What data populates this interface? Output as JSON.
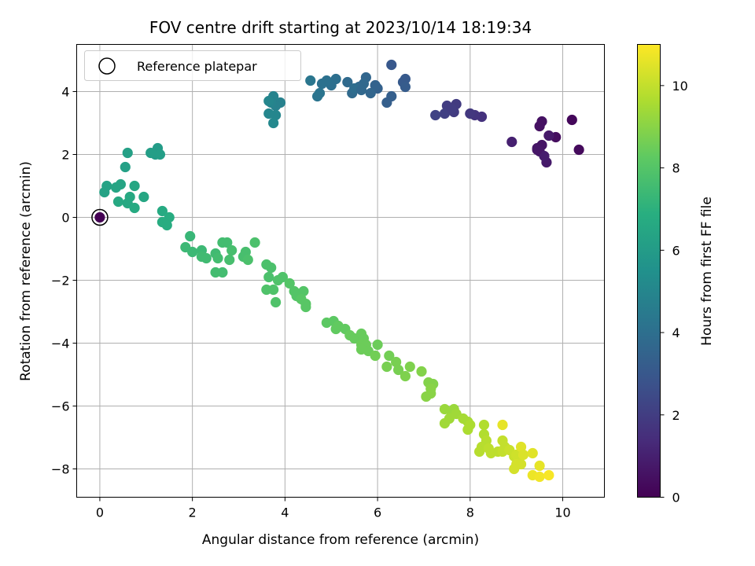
{
  "chart_data": {
    "type": "scatter",
    "title": "FOV centre drift starting at 2023/10/14 18:19:34",
    "xlabel": "Angular distance from reference (arcmin)",
    "ylabel": "Rotation from reference (arcmin)",
    "xlim": [
      -0.5,
      10.9
    ],
    "ylim": [
      -8.9,
      5.5
    ],
    "xticks": [
      0,
      2,
      4,
      6,
      8,
      10
    ],
    "yticks": [
      -8,
      -6,
      -4,
      -2,
      0,
      2,
      4
    ],
    "grid": true,
    "legend": {
      "position": "top-left",
      "entries": [
        "Reference platepar"
      ]
    },
    "reference_point": {
      "x": 0,
      "y": 0
    },
    "colorbar": {
      "label": "Hours from first FF file",
      "colormap": "viridis",
      "range": [
        0,
        11
      ],
      "ticks": [
        0,
        2,
        4,
        6,
        8,
        10
      ]
    },
    "columns": [
      "x",
      "y",
      "hours"
    ],
    "points": [
      [
        10.2,
        3.1,
        0.2
      ],
      [
        10.35,
        2.15,
        0.3
      ],
      [
        9.85,
        2.55,
        0.4
      ],
      [
        9.55,
        3.05,
        0.5
      ],
      [
        9.5,
        2.9,
        0.5
      ],
      [
        9.45,
        2.2,
        0.6
      ],
      [
        9.55,
        2.3,
        0.6
      ],
      [
        9.5,
        2.1,
        0.7
      ],
      [
        9.7,
        2.6,
        0.8
      ],
      [
        9.65,
        1.75,
        0.8
      ],
      [
        9.6,
        1.95,
        0.9
      ],
      [
        8.9,
        2.4,
        1.0
      ],
      [
        9.45,
        2.15,
        0.7
      ],
      [
        8.25,
        3.2,
        1.6
      ],
      [
        8.1,
        3.25,
        1.7
      ],
      [
        8.0,
        3.3,
        1.8
      ],
      [
        7.7,
        3.6,
        1.9
      ],
      [
        7.65,
        3.35,
        1.9
      ],
      [
        7.5,
        3.55,
        2.0
      ],
      [
        7.45,
        3.3,
        2.1
      ],
      [
        7.25,
        3.25,
        2.2
      ],
      [
        7.6,
        3.45,
        2.0
      ],
      [
        6.3,
        4.85,
        3.0
      ],
      [
        6.6,
        4.4,
        3.1
      ],
      [
        6.55,
        4.3,
        3.1
      ],
      [
        6.6,
        4.15,
        3.2
      ],
      [
        6.3,
        3.85,
        3.3
      ],
      [
        6.2,
        3.65,
        3.3
      ],
      [
        6.0,
        4.1,
        3.4
      ],
      [
        5.95,
        4.2,
        3.5
      ],
      [
        5.85,
        3.95,
        3.6
      ],
      [
        5.75,
        4.45,
        3.6
      ],
      [
        5.7,
        4.25,
        3.7
      ],
      [
        5.6,
        4.15,
        3.7
      ],
      [
        5.45,
        3.95,
        3.8
      ],
      [
        5.35,
        4.3,
        3.8
      ],
      [
        5.5,
        4.1,
        3.9
      ],
      [
        5.1,
        4.4,
        4.0
      ],
      [
        5.0,
        4.2,
        4.0
      ],
      [
        4.9,
        4.35,
        4.1
      ],
      [
        4.8,
        4.25,
        4.1
      ],
      [
        4.75,
        3.95,
        4.2
      ],
      [
        4.7,
        3.85,
        4.2
      ],
      [
        4.55,
        4.35,
        4.3
      ],
      [
        5.65,
        4.05,
        3.7
      ],
      [
        3.9,
        3.65,
        4.8
      ],
      [
        3.8,
        3.55,
        4.8
      ],
      [
        3.75,
        3.85,
        4.9
      ],
      [
        3.7,
        3.65,
        4.9
      ],
      [
        3.65,
        3.3,
        5.0
      ],
      [
        3.8,
        3.25,
        5.0
      ],
      [
        3.75,
        3.0,
        5.1
      ],
      [
        3.65,
        3.7,
        5.0
      ],
      [
        1.25,
        2.2,
        6.0
      ],
      [
        1.2,
        2.0,
        6.0
      ],
      [
        1.3,
        2.0,
        6.1
      ],
      [
        1.1,
        2.05,
        6.1
      ],
      [
        0.6,
        2.05,
        6.2
      ],
      [
        0.55,
        1.6,
        6.2
      ],
      [
        0.15,
        1.0,
        6.3
      ],
      [
        0.1,
        0.8,
        6.3
      ],
      [
        0.35,
        0.95,
        6.4
      ],
      [
        0.45,
        1.05,
        6.4
      ],
      [
        0.75,
        1.0,
        6.5
      ],
      [
        0.95,
        0.65,
        6.5
      ],
      [
        0.65,
        0.65,
        6.6
      ],
      [
        0.6,
        0.45,
        6.6
      ],
      [
        0.4,
        0.5,
        6.6
      ],
      [
        0.75,
        0.3,
        6.7
      ],
      [
        1.35,
        0.2,
        6.7
      ],
      [
        1.5,
        0.0,
        6.8
      ],
      [
        1.35,
        -0.15,
        6.8
      ],
      [
        1.45,
        -0.25,
        6.8
      ],
      [
        1.95,
        -0.6,
        7.3
      ],
      [
        1.85,
        -0.95,
        7.4
      ],
      [
        2.0,
        -1.1,
        7.4
      ],
      [
        2.2,
        -1.05,
        7.4
      ],
      [
        2.2,
        -1.25,
        7.5
      ],
      [
        2.3,
        -1.3,
        7.5
      ],
      [
        2.5,
        -1.15,
        7.5
      ],
      [
        2.65,
        -0.8,
        7.6
      ],
      [
        2.75,
        -0.8,
        7.6
      ],
      [
        2.55,
        -1.3,
        7.6
      ],
      [
        2.8,
        -1.35,
        7.7
      ],
      [
        2.85,
        -1.05,
        7.7
      ],
      [
        3.15,
        -1.1,
        7.7
      ],
      [
        3.1,
        -1.25,
        7.7
      ],
      [
        3.35,
        -0.8,
        7.8
      ],
      [
        3.2,
        -1.35,
        7.8
      ],
      [
        2.5,
        -1.75,
        7.6
      ],
      [
        2.65,
        -1.75,
        7.6
      ],
      [
        3.6,
        -1.5,
        7.8
      ],
      [
        3.7,
        -1.6,
        7.8
      ],
      [
        3.65,
        -1.9,
        7.8
      ],
      [
        3.85,
        -2.0,
        7.9
      ],
      [
        3.95,
        -1.9,
        7.9
      ],
      [
        3.75,
        -2.3,
        7.9
      ],
      [
        3.6,
        -2.3,
        7.9
      ],
      [
        4.1,
        -2.1,
        8.0
      ],
      [
        4.2,
        -2.35,
        8.0
      ],
      [
        4.25,
        -2.5,
        8.0
      ],
      [
        4.4,
        -2.35,
        8.0
      ],
      [
        4.35,
        -2.6,
        8.1
      ],
      [
        4.45,
        -2.75,
        8.1
      ],
      [
        4.45,
        -2.85,
        8.1
      ],
      [
        3.8,
        -2.7,
        7.9
      ],
      [
        4.9,
        -3.35,
        8.2
      ],
      [
        5.05,
        -3.3,
        8.2
      ],
      [
        5.15,
        -3.45,
        8.3
      ],
      [
        5.1,
        -3.55,
        8.3
      ],
      [
        5.3,
        -3.55,
        8.3
      ],
      [
        5.4,
        -3.75,
        8.4
      ],
      [
        5.5,
        -3.85,
        8.4
      ],
      [
        5.65,
        -3.7,
        8.4
      ],
      [
        5.7,
        -3.85,
        8.4
      ],
      [
        5.65,
        -4.05,
        8.5
      ],
      [
        5.75,
        -4.05,
        8.5
      ],
      [
        5.65,
        -4.2,
        8.5
      ],
      [
        5.8,
        -4.25,
        8.5
      ],
      [
        5.95,
        -4.4,
        8.6
      ],
      [
        6.0,
        -4.05,
        8.5
      ],
      [
        6.25,
        -4.4,
        8.6
      ],
      [
        6.2,
        -4.75,
        8.7
      ],
      [
        6.4,
        -4.6,
        8.7
      ],
      [
        6.45,
        -4.85,
        8.7
      ],
      [
        6.6,
        -5.05,
        8.8
      ],
      [
        6.7,
        -4.75,
        8.8
      ],
      [
        6.95,
        -4.9,
        8.9
      ],
      [
        7.1,
        -5.25,
        8.9
      ],
      [
        7.2,
        -5.3,
        8.9
      ],
      [
        7.15,
        -5.45,
        9.0
      ],
      [
        7.05,
        -5.7,
        9.0
      ],
      [
        7.15,
        -5.6,
        9.0
      ],
      [
        7.45,
        -6.1,
        9.3
      ],
      [
        7.6,
        -6.2,
        9.3
      ],
      [
        7.65,
        -6.1,
        9.3
      ],
      [
        7.7,
        -6.25,
        9.4
      ],
      [
        7.55,
        -6.4,
        9.4
      ],
      [
        7.45,
        -6.55,
        9.4
      ],
      [
        7.85,
        -6.4,
        9.5
      ],
      [
        7.95,
        -6.5,
        9.5
      ],
      [
        8.0,
        -6.6,
        9.6
      ],
      [
        7.95,
        -6.75,
        9.6
      ],
      [
        8.3,
        -6.6,
        9.7
      ],
      [
        8.3,
        -6.9,
        9.7
      ],
      [
        8.35,
        -7.1,
        9.8
      ],
      [
        8.25,
        -7.3,
        9.8
      ],
      [
        8.2,
        -7.45,
        9.8
      ],
      [
        8.4,
        -7.35,
        9.9
      ],
      [
        8.45,
        -7.5,
        9.9
      ],
      [
        8.6,
        -7.45,
        9.9
      ],
      [
        8.7,
        -7.45,
        10.0
      ],
      [
        8.75,
        -7.3,
        10.0
      ],
      [
        8.7,
        -7.1,
        10.0
      ],
      [
        8.7,
        -6.6,
        10.6
      ],
      [
        8.85,
        -7.4,
        10.1
      ],
      [
        8.95,
        -7.6,
        10.1
      ],
      [
        9.0,
        -7.55,
        10.2
      ],
      [
        9.05,
        -7.7,
        10.2
      ],
      [
        9.0,
        -7.85,
        10.3
      ],
      [
        8.95,
        -8.0,
        10.3
      ],
      [
        9.1,
        -7.85,
        10.3
      ],
      [
        9.1,
        -7.3,
        10.5
      ],
      [
        9.15,
        -7.55,
        10.4
      ],
      [
        9.35,
        -7.5,
        10.5
      ],
      [
        9.5,
        -7.9,
        10.6
      ],
      [
        9.35,
        -8.2,
        10.7
      ],
      [
        9.5,
        -8.25,
        10.8
      ],
      [
        9.7,
        -8.2,
        10.9
      ]
    ]
  }
}
